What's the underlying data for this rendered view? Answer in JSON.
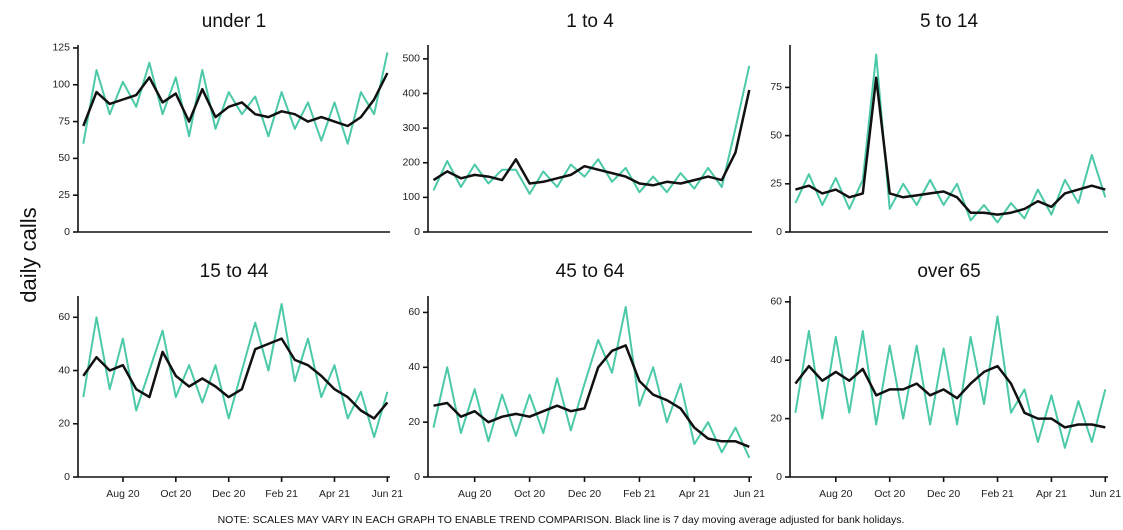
{
  "ylabel": "daily calls",
  "note": "NOTE: SCALES MAY VARY IN EACH GRAPH TO ENABLE TREND COMPARISON. Black line is 7 day moving average adjusted for bank holidays.",
  "chart_data": [
    {
      "type": "line",
      "title": "under 1",
      "x": [
        6.5,
        7,
        7.5,
        8,
        8.5,
        9,
        9.5,
        10,
        10.5,
        11,
        11.5,
        12,
        12.5,
        13,
        13.5,
        14,
        14.5,
        15,
        15.5,
        16,
        16.5,
        17,
        17.5,
        18
      ],
      "xlim": [
        6.3,
        18.1
      ],
      "ylim": [
        0,
        127
      ],
      "yticks": [
        0,
        25,
        50,
        75,
        100,
        125
      ],
      "series": [
        {
          "color": "#4cc9a8",
          "width": 2,
          "values": [
            60,
            110,
            80,
            102,
            85,
            115,
            80,
            105,
            65,
            110,
            70,
            95,
            80,
            92,
            65,
            95,
            70,
            88,
            62,
            88,
            60,
            95,
            80,
            122
          ]
        },
        {
          "color": "#111111",
          "width": 2.5,
          "values": [
            72,
            95,
            87,
            90,
            93,
            105,
            88,
            94,
            75,
            97,
            78,
            85,
            88,
            80,
            78,
            82,
            80,
            75,
            78,
            75,
            72,
            78,
            90,
            108
          ]
        }
      ]
    },
    {
      "type": "line",
      "title": "1 to 4",
      "x": [
        6.5,
        7,
        7.5,
        8,
        8.5,
        9,
        9.5,
        10,
        10.5,
        11,
        11.5,
        12,
        12.5,
        13,
        13.5,
        14,
        14.5,
        15,
        15.5,
        16,
        16.5,
        17,
        17.5,
        18
      ],
      "xlim": [
        6.3,
        18.1
      ],
      "ylim": [
        0,
        540
      ],
      "yticks": [
        0,
        100,
        200,
        300,
        400,
        500
      ],
      "series": [
        {
          "color": "#4cc9a8",
          "width": 2,
          "values": [
            120,
            205,
            130,
            195,
            140,
            180,
            180,
            110,
            175,
            130,
            195,
            160,
            210,
            145,
            185,
            115,
            160,
            115,
            170,
            125,
            185,
            130,
            300,
            480
          ]
        },
        {
          "color": "#111111",
          "width": 2.5,
          "values": [
            150,
            175,
            155,
            165,
            160,
            150,
            210,
            140,
            145,
            155,
            165,
            190,
            180,
            170,
            160,
            140,
            135,
            145,
            140,
            150,
            160,
            150,
            230,
            410
          ]
        }
      ]
    },
    {
      "type": "line",
      "title": "5 to 14",
      "x": [
        6.5,
        7,
        7.5,
        8,
        8.5,
        9,
        9.5,
        10,
        10.5,
        11,
        11.5,
        12,
        12.5,
        13,
        13.5,
        14,
        14.5,
        15,
        15.5,
        16,
        16.5,
        17,
        17.5,
        18
      ],
      "xlim": [
        6.3,
        18.1
      ],
      "ylim": [
        0,
        97
      ],
      "yticks": [
        0,
        25,
        50,
        75
      ],
      "series": [
        {
          "color": "#4cc9a8",
          "width": 2,
          "values": [
            15,
            30,
            14,
            28,
            12,
            27,
            92,
            12,
            25,
            14,
            27,
            14,
            25,
            6,
            14,
            5,
            15,
            7,
            22,
            9,
            27,
            15,
            40,
            18
          ]
        },
        {
          "color": "#111111",
          "width": 2.5,
          "values": [
            22,
            24,
            20,
            22,
            18,
            20,
            80,
            20,
            18,
            19,
            20,
            21,
            18,
            10,
            10,
            9,
            10,
            12,
            16,
            13,
            20,
            22,
            24,
            22
          ]
        }
      ]
    },
    {
      "type": "line",
      "title": "15 to 44",
      "x": [
        6.5,
        7,
        7.5,
        8,
        8.5,
        9,
        9.5,
        10,
        10.5,
        11,
        11.5,
        12,
        12.5,
        13,
        13.5,
        14,
        14.5,
        15,
        15.5,
        16,
        16.5,
        17,
        17.5,
        18
      ],
      "xlim": [
        6.3,
        18.1
      ],
      "ylim": [
        0,
        68
      ],
      "yticks": [
        0,
        20,
        40,
        60
      ],
      "xticks": [
        {
          "value": 8,
          "label": "Aug 20"
        },
        {
          "value": 10,
          "label": "Oct 20"
        },
        {
          "value": 12,
          "label": "Dec 20"
        },
        {
          "value": 14,
          "label": "Feb 21"
        },
        {
          "value": 16,
          "label": "Apr 21"
        },
        {
          "value": 18,
          "label": "Jun 21"
        }
      ],
      "series": [
        {
          "color": "#4cc9a8",
          "width": 2,
          "values": [
            30,
            60,
            33,
            52,
            25,
            40,
            55,
            30,
            42,
            28,
            42,
            22,
            40,
            58,
            40,
            65,
            36,
            52,
            30,
            42,
            22,
            32,
            15,
            32
          ]
        },
        {
          "color": "#111111",
          "width": 2.5,
          "values": [
            38,
            45,
            40,
            42,
            33,
            30,
            47,
            38,
            34,
            37,
            34,
            30,
            33,
            48,
            50,
            52,
            44,
            42,
            38,
            33,
            30,
            25,
            22,
            28
          ]
        }
      ]
    },
    {
      "type": "line",
      "title": "45 to 64",
      "x": [
        6.5,
        7,
        7.5,
        8,
        8.5,
        9,
        9.5,
        10,
        10.5,
        11,
        11.5,
        12,
        12.5,
        13,
        13.5,
        14,
        14.5,
        15,
        15.5,
        16,
        16.5,
        17,
        17.5,
        18
      ],
      "xlim": [
        6.3,
        18.1
      ],
      "ylim": [
        0,
        66
      ],
      "yticks": [
        0,
        20,
        40,
        60
      ],
      "xticks": [
        {
          "value": 8,
          "label": "Aug 20"
        },
        {
          "value": 10,
          "label": "Oct 20"
        },
        {
          "value": 12,
          "label": "Dec 20"
        },
        {
          "value": 14,
          "label": "Feb 21"
        },
        {
          "value": 16,
          "label": "Apr 21"
        },
        {
          "value": 18,
          "label": "Jun 21"
        }
      ],
      "series": [
        {
          "color": "#4cc9a8",
          "width": 2,
          "values": [
            18,
            40,
            16,
            32,
            13,
            30,
            15,
            30,
            16,
            36,
            17,
            34,
            50,
            38,
            62,
            26,
            40,
            20,
            34,
            12,
            20,
            9,
            18,
            7
          ]
        },
        {
          "color": "#111111",
          "width": 2.5,
          "values": [
            26,
            27,
            22,
            24,
            20,
            22,
            23,
            22,
            24,
            26,
            24,
            25,
            40,
            46,
            48,
            35,
            30,
            28,
            25,
            18,
            14,
            13,
            13,
            11
          ]
        }
      ]
    },
    {
      "type": "line",
      "title": "over 65",
      "x": [
        6.5,
        7,
        7.5,
        8,
        8.5,
        9,
        9.5,
        10,
        10.5,
        11,
        11.5,
        12,
        12.5,
        13,
        13.5,
        14,
        14.5,
        15,
        15.5,
        16,
        16.5,
        17,
        17.5,
        18
      ],
      "xlim": [
        6.3,
        18.1
      ],
      "ylim": [
        0,
        62
      ],
      "yticks": [
        0,
        20,
        40,
        60
      ],
      "xticks": [
        {
          "value": 8,
          "label": "Aug 20"
        },
        {
          "value": 10,
          "label": "Oct 20"
        },
        {
          "value": 12,
          "label": "Dec 20"
        },
        {
          "value": 14,
          "label": "Feb 21"
        },
        {
          "value": 16,
          "label": "Apr 21"
        },
        {
          "value": 18,
          "label": "Jun 21"
        }
      ],
      "series": [
        {
          "color": "#4cc9a8",
          "width": 2,
          "values": [
            22,
            50,
            20,
            48,
            22,
            50,
            18,
            45,
            20,
            45,
            18,
            44,
            18,
            48,
            25,
            55,
            22,
            30,
            12,
            28,
            10,
            26,
            12,
            30
          ]
        },
        {
          "color": "#111111",
          "width": 2.5,
          "values": [
            32,
            38,
            33,
            36,
            33,
            37,
            28,
            30,
            30,
            32,
            28,
            30,
            27,
            32,
            36,
            38,
            32,
            22,
            20,
            20,
            17,
            18,
            18,
            17
          ]
        }
      ]
    }
  ]
}
